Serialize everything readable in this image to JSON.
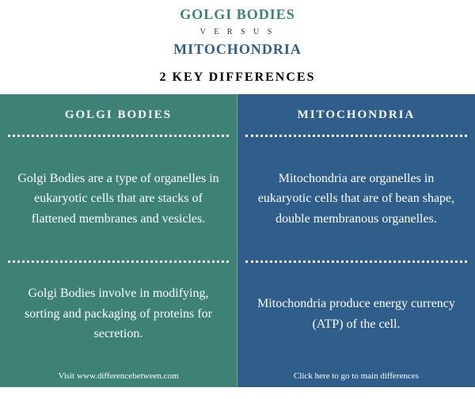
{
  "header": {
    "title1": "GOLGI BODIES",
    "title1_color": "#3d8275",
    "versus": "V E R S U S",
    "versus_color": "#333333",
    "title2": "MITOCHONDRIA",
    "title2_color": "#2f5e8a",
    "key_differences": "2 KEY DIFFERENCES"
  },
  "columns": {
    "left": {
      "bg_color": "#3d8275",
      "header": "GOLGI BODIES",
      "cell1": "Golgi Bodies are a type of organelles in eukaryotic cells that are stacks of flattened membranes and vesicles.",
      "cell2": "Golgi Bodies involve in modifying, sorting and packaging of proteins for secretion.",
      "footer": "Visit www.differencebetween.com"
    },
    "right": {
      "bg_color": "#2f5e8a",
      "header": "MITOCHONDRIA",
      "cell1": "Mitochondria are organelles in eukaryotic cells that are of bean shape, double membranous organelles.",
      "cell2": "Mitochondria produce energy currency (ATP) of the cell.",
      "footer": "Click here to go to main differences"
    }
  }
}
